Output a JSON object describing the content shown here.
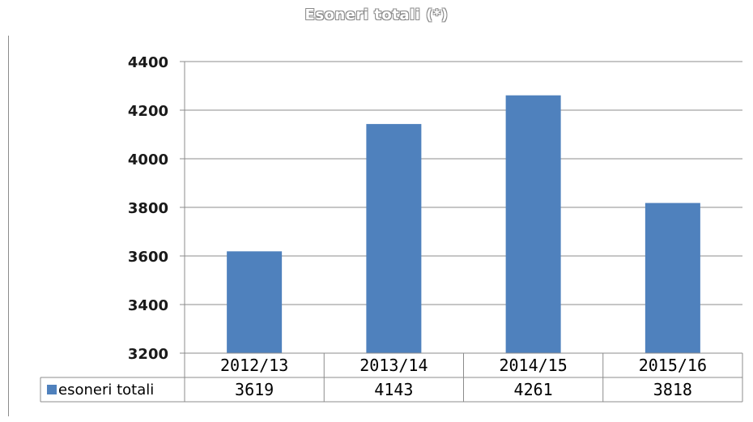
{
  "chart_data": {
    "type": "bar",
    "title": "Esoneri totali (*)",
    "categories": [
      "2012/13",
      "2013/14",
      "2014/15",
      "2015/16"
    ],
    "series": [
      {
        "name": "esoneri totali",
        "values": [
          3619,
          4143,
          4261,
          3818
        ],
        "color": "#4f81bd"
      }
    ],
    "ylim": [
      3200,
      4400
    ],
    "yticks": [
      3200,
      3400,
      3600,
      3800,
      4000,
      4200,
      4400
    ],
    "grid": true,
    "legend": "data-table-left",
    "data_table": true
  }
}
